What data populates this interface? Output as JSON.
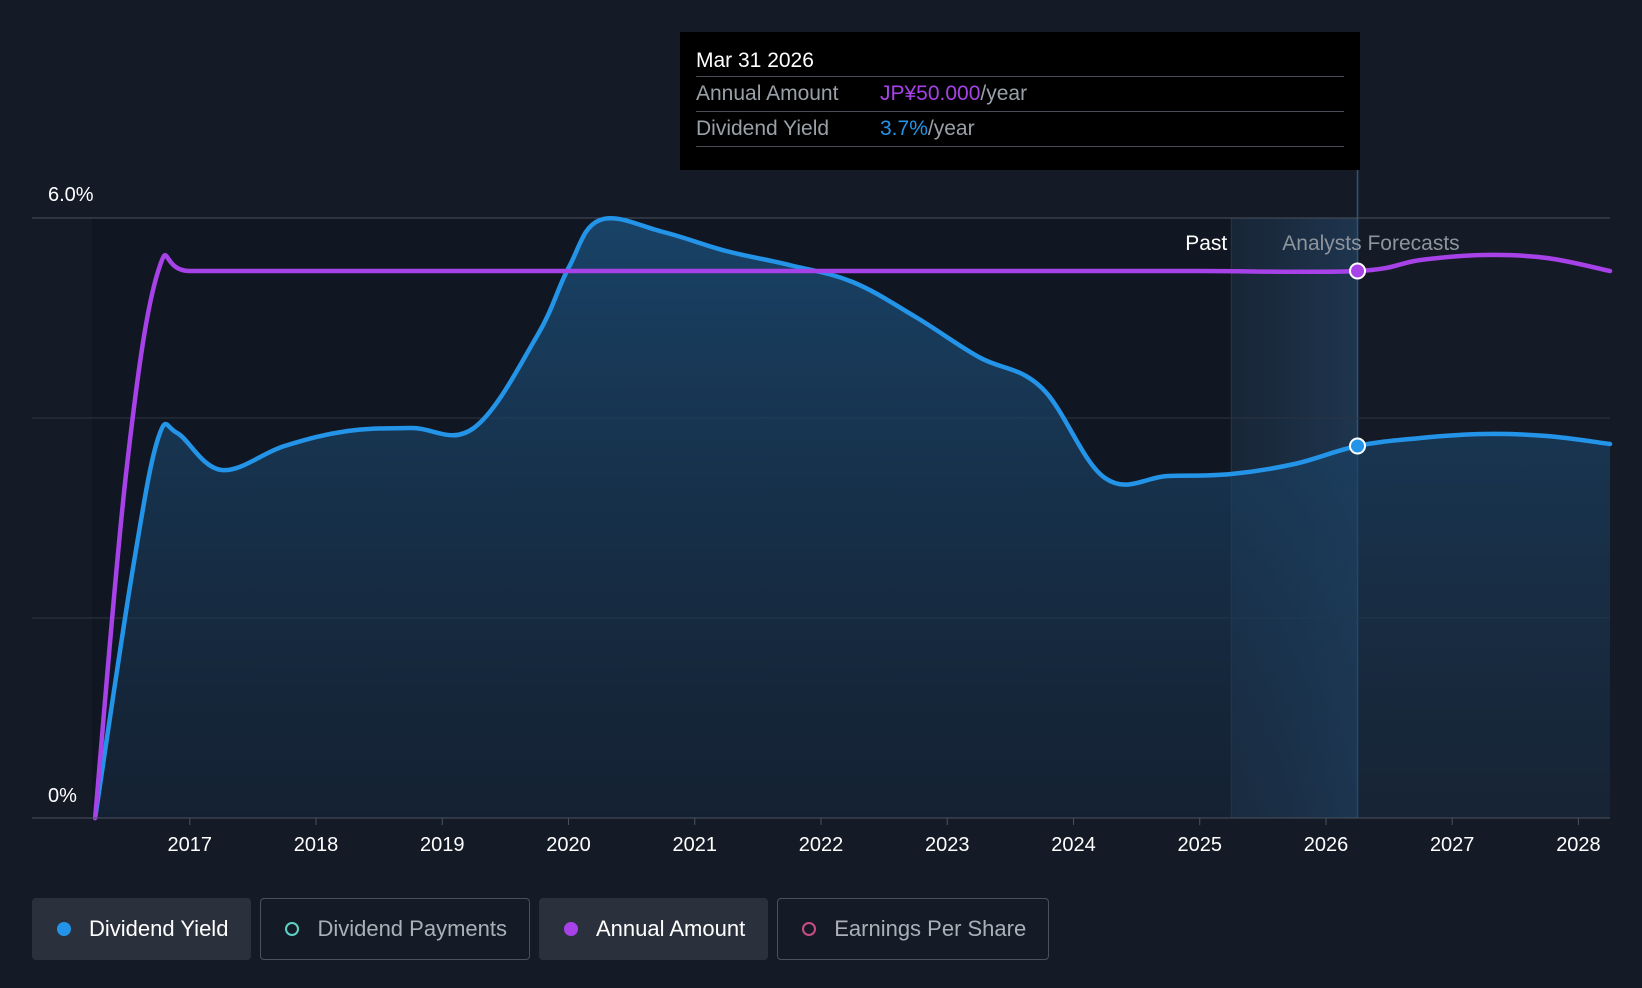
{
  "tooltip": {
    "date": "Mar 31 2026",
    "rows": [
      {
        "label": "Annual Amount",
        "value": "JP¥50.000",
        "unit": "/year",
        "color": "#a742e8"
      },
      {
        "label": "Dividend Yield",
        "value": "3.7%",
        "unit": "/year",
        "color": "#2394e8"
      }
    ]
  },
  "legend": [
    {
      "label": "Dividend Yield",
      "active": true
    },
    {
      "label": "Dividend Payments",
      "active": false
    },
    {
      "label": "Annual Amount",
      "active": true
    },
    {
      "label": "Earnings Per Share",
      "active": false
    }
  ],
  "colors": {
    "background": "#151b26",
    "yield": "#2394e8",
    "annual": "#a742e8",
    "payments": "#5fd1c4",
    "eps": "#c94d84"
  },
  "chart_data": {
    "type": "area",
    "ylim": [
      0,
      6.0
    ],
    "y_tick_labels": [
      "0%",
      "6.0%"
    ],
    "xlim": [
      2015.75,
      2028.25
    ],
    "x_tick_labels": [
      "2017",
      "2018",
      "2019",
      "2020",
      "2021",
      "2022",
      "2023",
      "2024",
      "2025",
      "2026",
      "2027",
      "2028"
    ],
    "x_ticks": [
      2017,
      2018,
      2019,
      2020,
      2021,
      2022,
      2023,
      2024,
      2025,
      2026,
      2027,
      2028
    ],
    "past_label": "Past",
    "forecast_label": "Analysts Forecasts",
    "forecast_start": 2025.25,
    "cursor_x": 2026.25,
    "series": [
      {
        "name": "Dividend Yield",
        "x": [
          2016.25,
          2016.55,
          2016.75,
          2016.9,
          2017.25,
          2017.75,
          2018.25,
          2018.75,
          2019.25,
          2019.75,
          2020.0,
          2020.25,
          2020.75,
          2021.25,
          2021.75,
          2022.25,
          2022.75,
          2023.25,
          2023.75,
          2024.25,
          2024.75,
          2025.25,
          2025.75,
          2026.25,
          2026.75,
          2027.25,
          2027.75,
          2028.25
        ],
        "y": [
          0.0,
          2.5,
          3.8,
          3.85,
          3.48,
          3.72,
          3.87,
          3.9,
          3.9,
          4.82,
          5.5,
          5.98,
          5.86,
          5.67,
          5.53,
          5.36,
          5.01,
          4.61,
          4.3,
          3.4,
          3.42,
          3.44,
          3.54,
          3.72,
          3.8,
          3.84,
          3.82,
          3.74
        ]
      },
      {
        "name": "Annual Amount",
        "x": [
          2016.25,
          2016.5,
          2016.75,
          2017.0,
          2018.0,
          2019.0,
          2020.0,
          2021.0,
          2022.0,
          2023.0,
          2024.0,
          2025.0,
          2026.25,
          2026.75,
          2027.25,
          2027.75,
          2028.25
        ],
        "y": [
          0.0,
          3.5,
          5.47,
          5.47,
          5.47,
          5.47,
          5.47,
          5.47,
          5.47,
          5.47,
          5.47,
          5.47,
          5.47,
          5.58,
          5.63,
          5.6,
          5.47
        ]
      }
    ]
  }
}
